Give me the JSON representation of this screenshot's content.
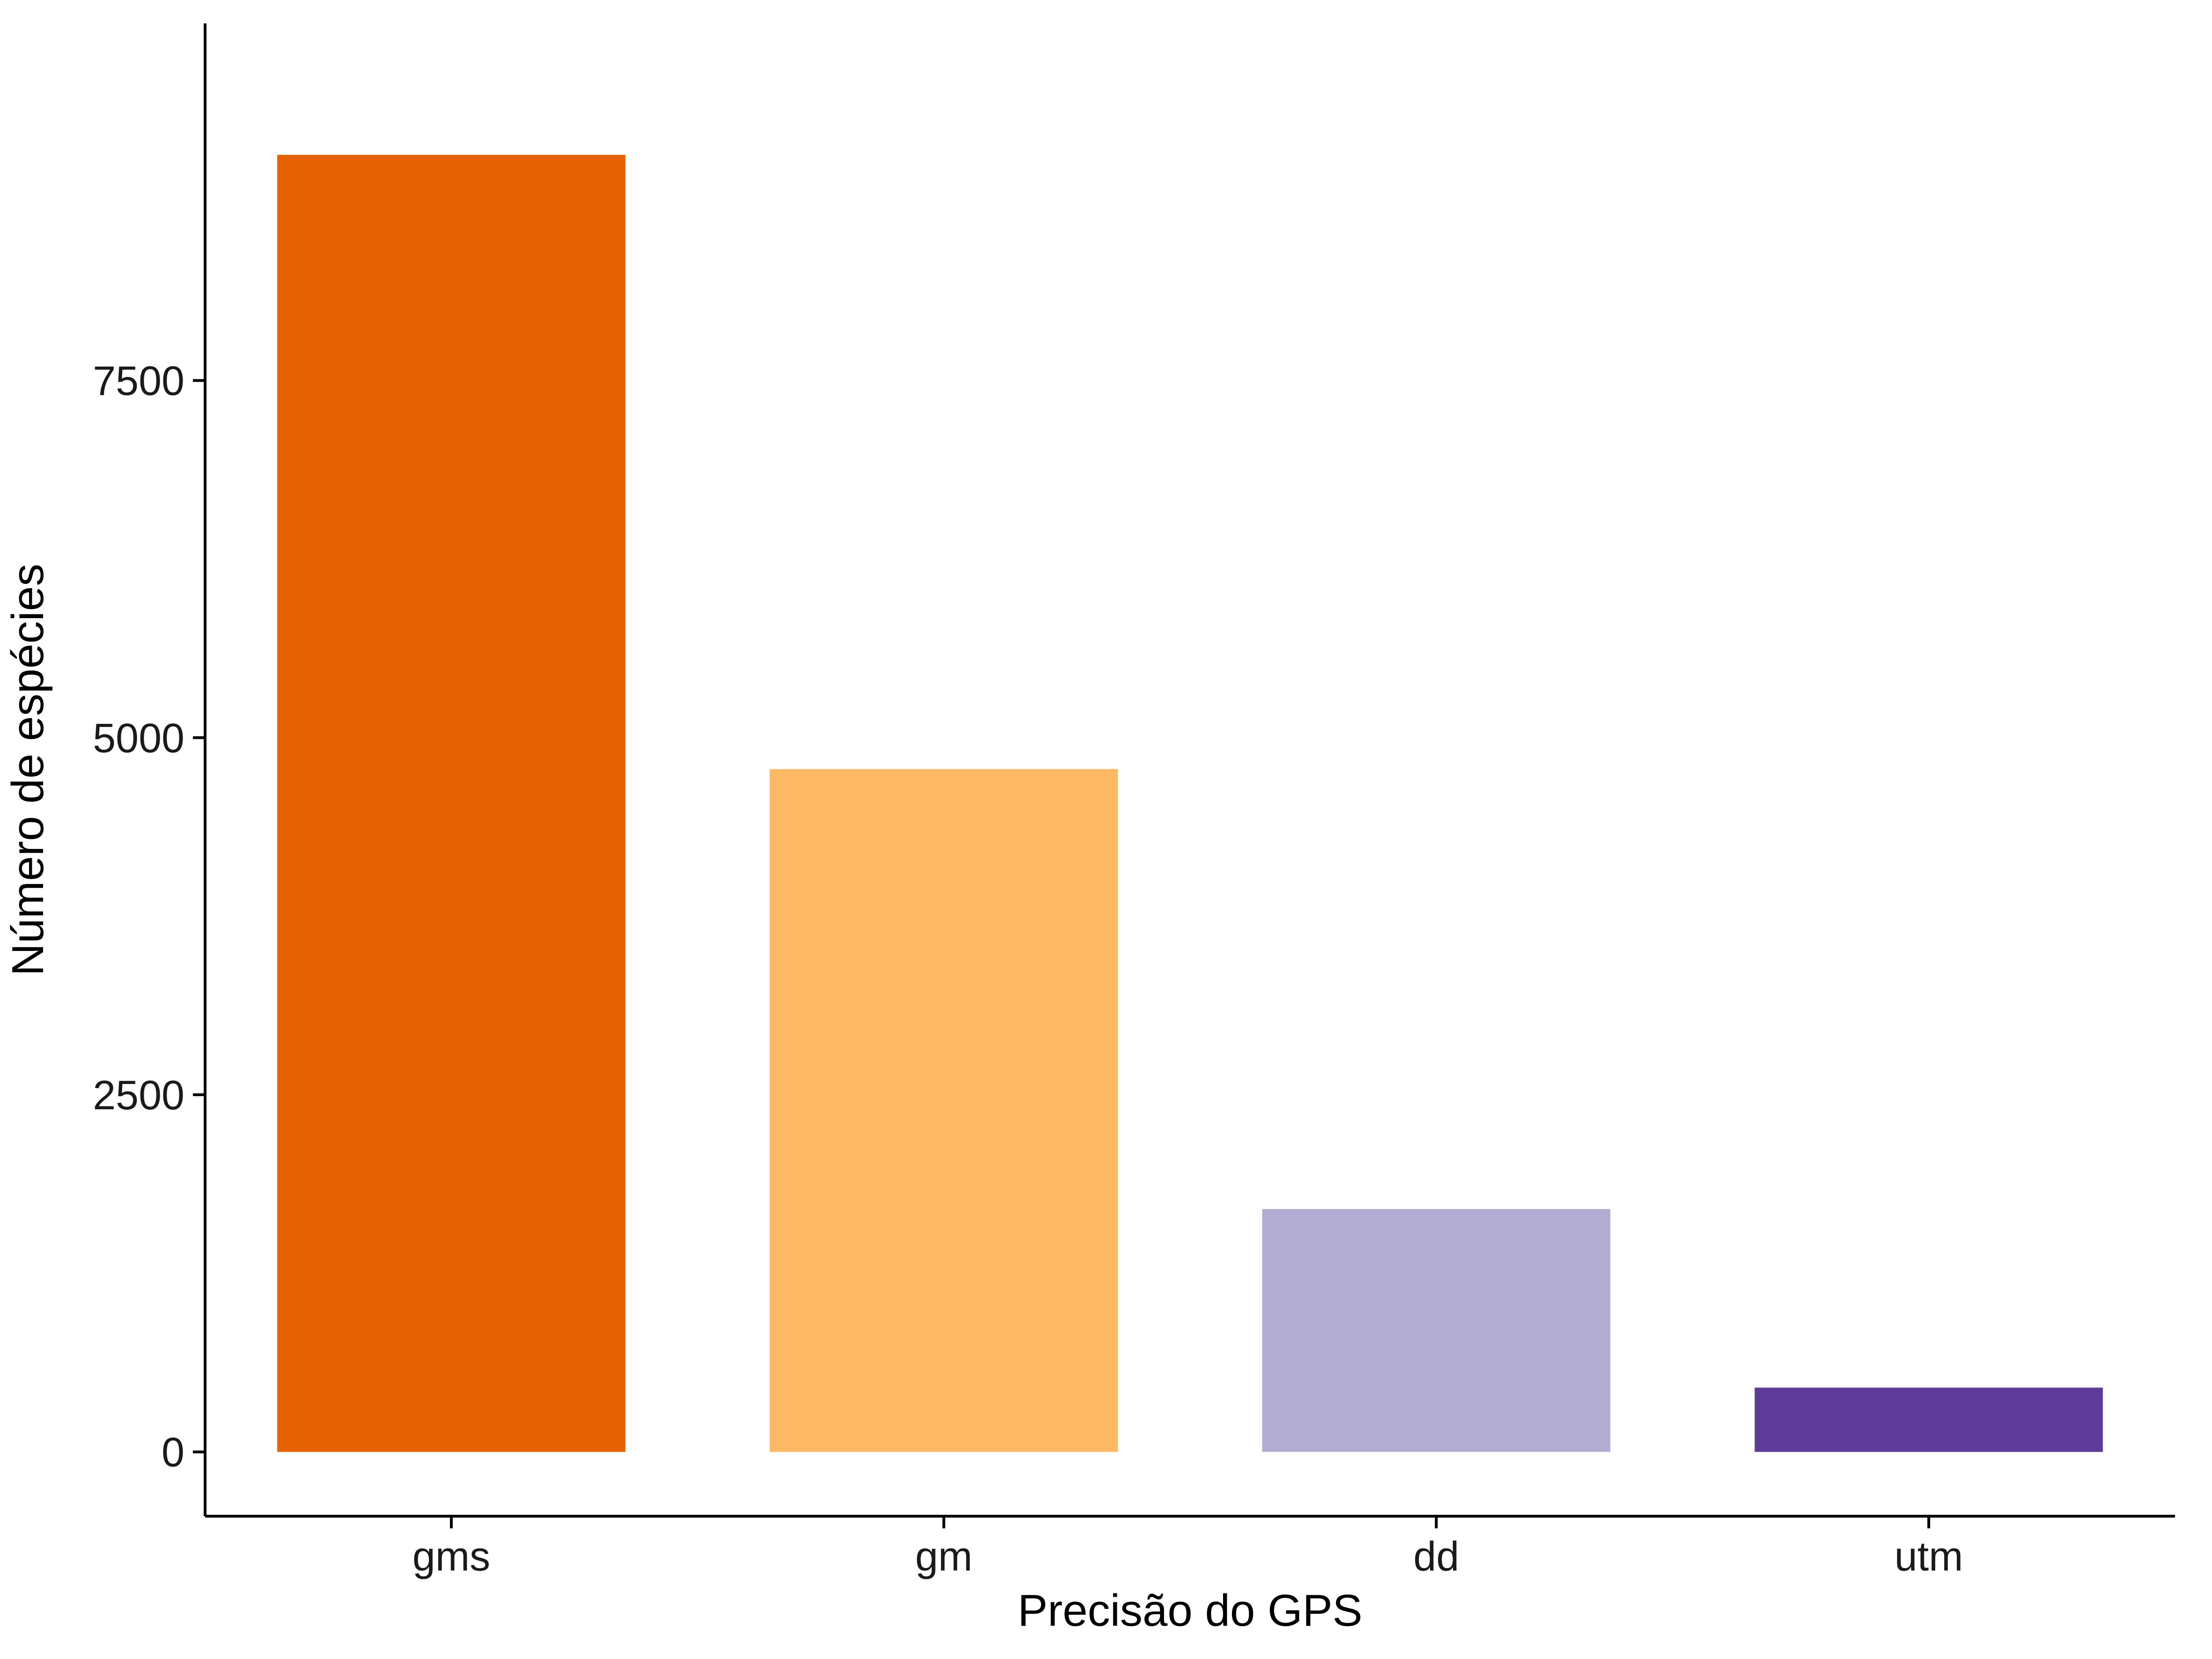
{
  "chart_data": {
    "type": "bar",
    "title": "",
    "xlabel": "Precisão do GPS",
    "ylabel": "Número de espécies",
    "categories": [
      "gms",
      "gm",
      "dd",
      "utm"
    ],
    "values": [
      9080,
      4780,
      1700,
      450
    ],
    "colors": [
      "#E66101",
      "#FDB863",
      "#B2ABD2",
      "#5E3C99"
    ],
    "ylim": [
      -450,
      10000
    ],
    "yticks": [
      0,
      2500,
      5000,
      7500
    ],
    "ytick_labels": [
      "0",
      "2500",
      "5000",
      "7500"
    ],
    "grid": false,
    "legend": "none"
  }
}
